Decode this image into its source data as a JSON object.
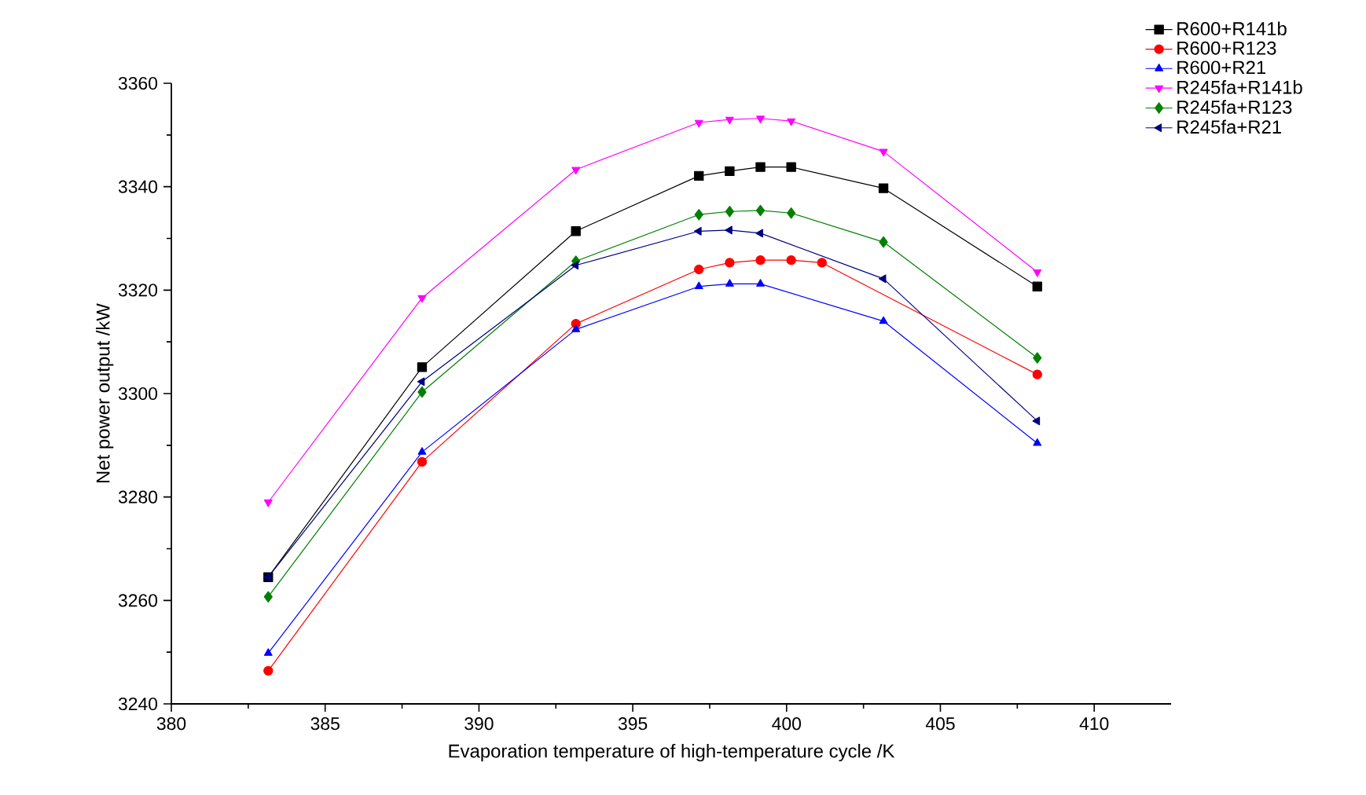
{
  "chart_data": {
    "type": "line",
    "xlabel": "Evaporation temperature of high-temperature cycle /K",
    "ylabel": "Net power output /kW",
    "xlim": [
      380,
      412.5
    ],
    "ylim": [
      3240,
      3360
    ],
    "xticks": [
      380,
      385,
      390,
      395,
      400,
      405,
      410
    ],
    "yticks": [
      3240,
      3260,
      3280,
      3300,
      3320,
      3340,
      3360
    ],
    "legend": "top right",
    "grid": false,
    "line_style": "solid",
    "series": [
      {
        "name": "R600+R141b",
        "color": "#000000",
        "marker": "square",
        "x": [
          383.15,
          388.15,
          393.15,
          397.15,
          398.15,
          399.15,
          400.15,
          403.15,
          408.15
        ],
        "values": [
          3264.5,
          3305.1,
          3331.4,
          3342.1,
          3343.0,
          3343.8,
          3343.8,
          3339.7,
          3320.7
        ]
      },
      {
        "name": "R600+R123",
        "color": "#ff0000",
        "marker": "circle",
        "x": [
          383.15,
          388.15,
          393.15,
          397.15,
          398.15,
          399.15,
          400.15,
          401.15,
          403.15,
          408.15
        ],
        "values": [
          3246.4,
          3286.8,
          3313.5,
          3324.0,
          3325.3,
          3325.8,
          3325.8,
          3325.3,
          null,
          3303.7
        ]
      },
      {
        "name": "R600+R21",
        "color": "#0000ff",
        "marker": "triangle",
        "x": [
          383.15,
          388.15,
          393.15,
          397.15,
          398.15,
          399.15,
          403.15,
          408.15
        ],
        "values": [
          3249.8,
          3288.7,
          3312.4,
          3320.7,
          3321.2,
          3321.2,
          3314.0,
          3290.4
        ]
      },
      {
        "name": "R245fa+R141b",
        "color": "#ff00ff",
        "marker": "triangle-down",
        "x": [
          383.15,
          388.15,
          393.15,
          397.15,
          398.15,
          399.15,
          400.15,
          403.15,
          408.15
        ],
        "values": [
          3279.0,
          3318.5,
          3343.3,
          3352.4,
          3353.0,
          3353.2,
          3352.7,
          3346.8,
          3323.5
        ]
      },
      {
        "name": "R245fa+R123",
        "color": "#008000",
        "marker": "diamond",
        "x": [
          383.15,
          388.15,
          393.15,
          397.15,
          398.15,
          399.15,
          400.15,
          403.15,
          408.15
        ],
        "values": [
          3260.7,
          3300.3,
          3325.6,
          3334.6,
          3335.2,
          3335.4,
          3334.9,
          3329.3,
          3306.9
        ]
      },
      {
        "name": "R245fa+R21",
        "color": "#000080",
        "marker": "triangle-left",
        "x": [
          383.15,
          388.15,
          393.15,
          397.15,
          398.15,
          399.15,
          403.15,
          408.15
        ],
        "values": [
          3264.5,
          3302.3,
          3324.8,
          3331.4,
          3331.6,
          3331.0,
          3322.2,
          3294.7
        ]
      }
    ]
  }
}
